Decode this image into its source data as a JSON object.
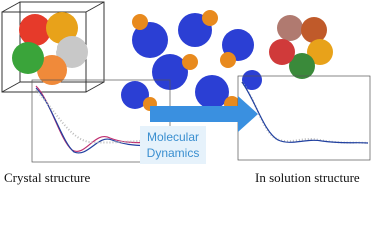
{
  "left_label": "Crystal structure",
  "right_label": "In solution structure",
  "arrow_label": [
    "Molecular",
    "Dynamics"
  ]
}
